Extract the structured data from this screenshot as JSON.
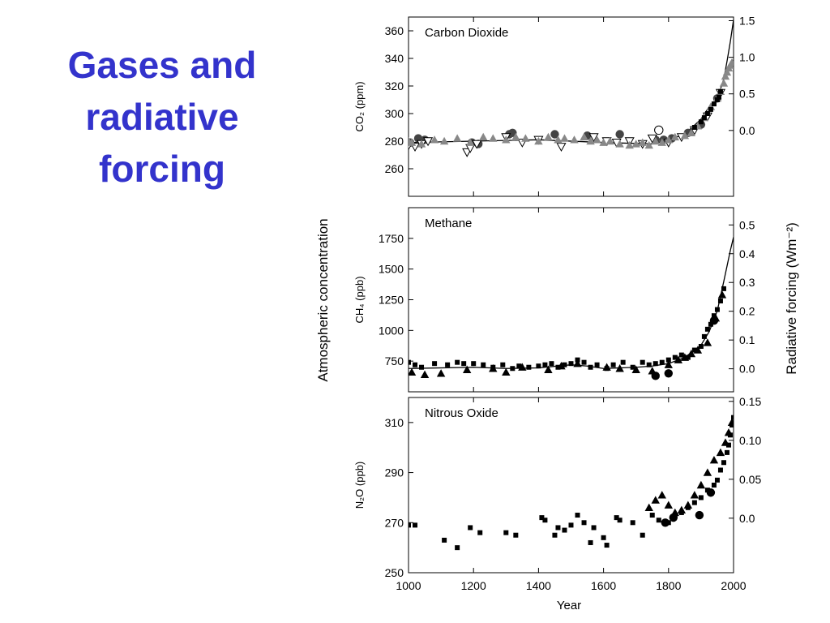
{
  "slide": {
    "title_lines": [
      "Gases and",
      "radiative",
      "forcing"
    ]
  },
  "figure": {
    "left_axis_label": "Atmospheric concentration",
    "right_axis_label": "Radiative forcing  (Wm⁻²)",
    "x_axis_label": "Year",
    "x_ticks": [
      1000,
      1200,
      1400,
      1600,
      1800,
      2000
    ],
    "xlim": [
      1000,
      2000
    ]
  },
  "colors": {
    "title": "#3333cc",
    "ink": "#000000",
    "gray_marker": "#888888"
  },
  "chart_data": [
    {
      "type": "scatter",
      "title": "Carbon Dioxide",
      "ylabel": "CO₂ (ppm)",
      "ylim": [
        240,
        370
      ],
      "y_ticks": [
        260,
        280,
        300,
        320,
        340,
        360
      ],
      "right_ylim": [
        -0.9,
        1.55
      ],
      "right_ticks": [
        0.0,
        0.5,
        1.0,
        1.5
      ],
      "right_tick_labels": [
        "0.0",
        "0.5",
        "1.0",
        "1.5"
      ],
      "fit_line": {
        "x": [
          1000,
          1200,
          1400,
          1600,
          1750,
          1800,
          1850,
          1900,
          1925,
          1950,
          1970,
          1980,
          1990,
          2000
        ],
        "y": [
          279,
          280,
          281,
          279,
          278,
          281,
          285,
          296,
          305,
          311,
          325,
          338,
          352,
          368
        ]
      },
      "series": [
        {
          "marker": "circle",
          "color": "#444444",
          "x": [
            1005,
            1030,
            1050,
            1195,
            1215,
            1310,
            1320,
            1450,
            1550,
            1650,
            1760,
            1785,
            1810,
            1860,
            1900,
            1950
          ],
          "y": [
            279,
            282,
            281,
            279,
            278,
            285,
            286,
            285,
            284,
            285,
            281,
            281,
            282,
            286,
            292,
            311
          ]
        },
        {
          "marker": "open-triangle-down",
          "color": "#000000",
          "x": [
            1000,
            1020,
            1040,
            1060,
            1180,
            1190,
            1210,
            1300,
            1350,
            1400,
            1470,
            1570,
            1610,
            1640,
            1680,
            1720,
            1750,
            1800,
            1840,
            1880,
            1920,
            1960
          ],
          "y": [
            277,
            276,
            278,
            280,
            272,
            275,
            278,
            283,
            279,
            281,
            276,
            283,
            280,
            279,
            280,
            278,
            282,
            279,
            283,
            288,
            298,
            315
          ]
        },
        {
          "marker": "open-circle",
          "color": "#000000",
          "x": [
            1770
          ],
          "y": [
            288
          ]
        },
        {
          "marker": "triangle",
          "color": "#888888",
          "x": [
            1000,
            1010,
            1040,
            1080,
            1110,
            1150,
            1190,
            1230,
            1260,
            1300,
            1330,
            1360,
            1400,
            1430,
            1460,
            1480,
            1510,
            1540,
            1560,
            1580,
            1600,
            1620,
            1650,
            1680,
            1700,
            1720,
            1740,
            1760,
            1780,
            1800,
            1820,
            1850,
            1870,
            1890,
            1910,
            1930,
            1950,
            1960,
            1970,
            1975,
            1980,
            1985,
            1990,
            1995
          ],
          "y": [
            280,
            279,
            278,
            281,
            280,
            282,
            279,
            283,
            282,
            281,
            283,
            282,
            280,
            283,
            281,
            282,
            281,
            283,
            280,
            281,
            279,
            280,
            278,
            277,
            278,
            279,
            277,
            280,
            279,
            281,
            283,
            284,
            286,
            291,
            297,
            305,
            311,
            316,
            322,
            327,
            330,
            333,
            335,
            337
          ]
        },
        {
          "marker": "square",
          "color": "#000000",
          "x": [
            1880,
            1900,
            1910,
            1920,
            1930,
            1940,
            1950,
            1955,
            1960
          ],
          "y": [
            290,
            294,
            297,
            300,
            303,
            307,
            310,
            312,
            316
          ]
        }
      ]
    },
    {
      "type": "scatter",
      "title": "Methane",
      "ylabel": "CH₄ (ppb)",
      "ylim": [
        500,
        2000
      ],
      "y_ticks": [
        750,
        1000,
        1250,
        1500,
        1750
      ],
      "right_ylim": [
        -0.08,
        0.56
      ],
      "right_ticks": [
        0.0,
        0.1,
        0.2,
        0.3,
        0.4,
        0.5
      ],
      "right_tick_labels": [
        "0.0",
        "0.1",
        "0.2",
        "0.3",
        "0.4",
        "0.5"
      ],
      "fit_line": {
        "x": [
          1000,
          1200,
          1300,
          1400,
          1500,
          1550,
          1600,
          1700,
          1750,
          1800,
          1850,
          1900,
          1925,
          1950,
          1970,
          1990,
          2000
        ],
        "y": [
          690,
          700,
          690,
          695,
          720,
          710,
          690,
          700,
          710,
          730,
          780,
          880,
          990,
          1160,
          1400,
          1650,
          1760
        ]
      },
      "series": [
        {
          "marker": "square",
          "color": "#000000",
          "x": [
            1000,
            1020,
            1040,
            1080,
            1120,
            1150,
            1170,
            1200,
            1230,
            1260,
            1290,
            1320,
            1340,
            1370,
            1400,
            1420,
            1440,
            1460,
            1480,
            1500,
            1520,
            1540,
            1560,
            1580,
            1610,
            1630,
            1660,
            1690,
            1720,
            1740,
            1760,
            1780,
            1800,
            1820,
            1840,
            1860,
            1880,
            1900,
            1910,
            1920,
            1930,
            1940,
            1950,
            1960,
            1970
          ],
          "y": [
            740,
            720,
            700,
            730,
            720,
            740,
            730,
            730,
            720,
            700,
            720,
            690,
            710,
            700,
            710,
            720,
            730,
            700,
            720,
            730,
            760,
            740,
            700,
            720,
            690,
            720,
            740,
            700,
            740,
            720,
            730,
            740,
            760,
            780,
            800,
            780,
            840,
            870,
            950,
            1010,
            1050,
            1120,
            1170,
            1240,
            1340
          ]
        },
        {
          "marker": "triangle",
          "color": "#000000",
          "x": [
            1010,
            1050,
            1100,
            1180,
            1260,
            1300,
            1350,
            1430,
            1470,
            1520,
            1610,
            1650,
            1700,
            1750,
            1800,
            1830,
            1850,
            1870,
            1890,
            1920,
            1945,
            1965
          ],
          "y": [
            660,
            640,
            650,
            680,
            690,
            660,
            700,
            680,
            710,
            730,
            700,
            690,
            680,
            670,
            720,
            760,
            780,
            810,
            840,
            900,
            1100,
            1290
          ]
        },
        {
          "marker": "circle",
          "color": "#000000",
          "x": [
            1760,
            1800,
            1940
          ],
          "y": [
            630,
            650,
            1080
          ]
        }
      ]
    },
    {
      "type": "scatter",
      "title": "Nitrous Oxide",
      "ylabel": "N₂O (ppb)",
      "ylim": [
        250,
        320
      ],
      "y_ticks": [
        250,
        270,
        290,
        310
      ],
      "right_ylim": [
        -0.07,
        0.155
      ],
      "right_ticks": [
        0.0,
        0.05,
        0.1,
        0.15
      ],
      "right_tick_labels": [
        "0.0",
        "0.05",
        "0.10",
        "0.15"
      ],
      "series": [
        {
          "marker": "square",
          "color": "#000000",
          "x": [
            1000,
            1020,
            1110,
            1150,
            1190,
            1220,
            1300,
            1330,
            1410,
            1420,
            1450,
            1460,
            1480,
            1500,
            1520,
            1540,
            1560,
            1570,
            1600,
            1610,
            1640,
            1650,
            1690,
            1720,
            1750,
            1770,
            1800,
            1820,
            1840,
            1860,
            1880,
            1900,
            1920,
            1940,
            1950,
            1960,
            1970,
            1980,
            1985,
            1990,
            1995,
            2000
          ],
          "y": [
            269,
            269,
            263,
            260,
            268,
            266,
            266,
            265,
            272,
            271,
            265,
            268,
            267,
            269,
            273,
            270,
            262,
            268,
            264,
            261,
            272,
            271,
            270,
            265,
            273,
            271,
            270,
            273,
            274,
            276,
            278,
            280,
            283,
            285,
            287,
            291,
            294,
            298,
            301,
            305,
            309,
            312
          ]
        },
        {
          "marker": "triangle",
          "color": "#000000",
          "x": [
            1740,
            1760,
            1780,
            1800,
            1820,
            1840,
            1860,
            1880,
            1900,
            1920,
            1940,
            1960,
            1975,
            1985,
            1995
          ],
          "y": [
            276,
            279,
            281,
            277,
            274,
            275,
            277,
            281,
            285,
            290,
            295,
            298,
            302,
            306,
            310
          ]
        },
        {
          "marker": "circle",
          "color": "#000000",
          "x": [
            1790,
            1815,
            1895,
            1930
          ],
          "y": [
            270,
            272,
            273,
            282
          ]
        }
      ]
    }
  ]
}
